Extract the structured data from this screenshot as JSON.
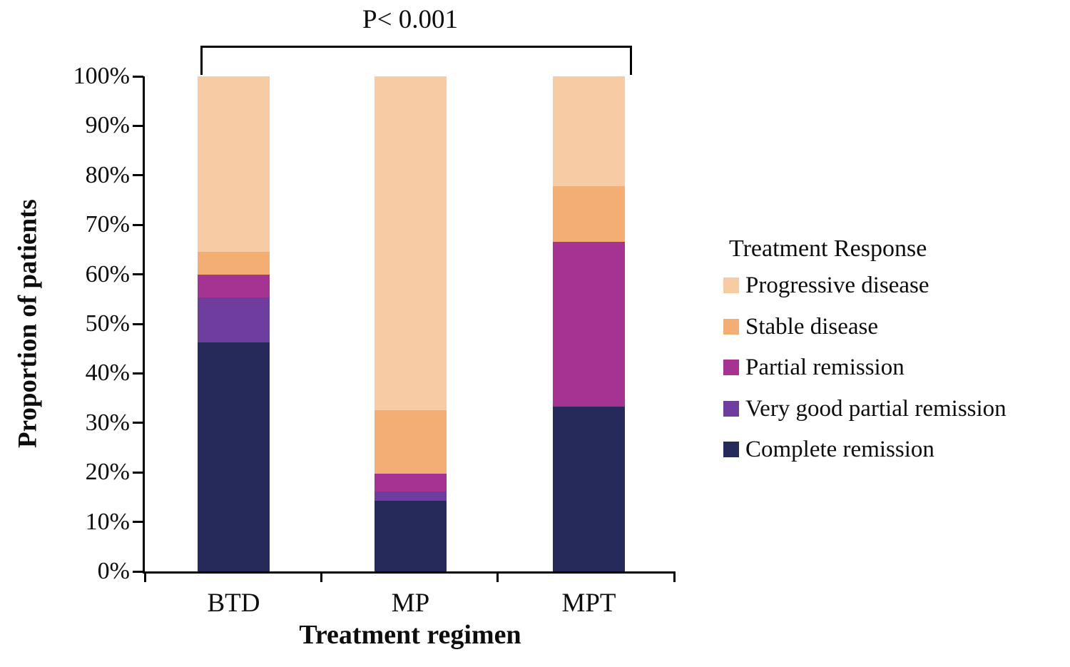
{
  "chart_data": {
    "type": "bar",
    "stacked": true,
    "title": "",
    "xlabel": "Treatment regimen",
    "ylabel": "Proportion of patients",
    "categories": [
      "BTD",
      "MP",
      "MPT"
    ],
    "series": [
      {
        "name": "Complete remission",
        "color": "#252a5b",
        "values": [
          46.2,
          14.3,
          33.3
        ]
      },
      {
        "name": "Very good partial remission",
        "color": "#6e3d9e",
        "values": [
          9.2,
          1.8,
          0.0
        ]
      },
      {
        "name": "Partial remission",
        "color": "#a43391",
        "values": [
          4.6,
          3.6,
          33.3
        ]
      },
      {
        "name": "Stable disease",
        "color": "#f3ae74",
        "values": [
          4.6,
          12.9,
          11.2
        ]
      },
      {
        "name": "Progressive disease",
        "color": "#f7cba3",
        "values": [
          35.4,
          67.4,
          22.2
        ]
      }
    ],
    "ylim": [
      0,
      100
    ],
    "y_ticks": [
      "0%",
      "10%",
      "20%",
      "30%",
      "40%",
      "50%",
      "60%",
      "70%",
      "80%",
      "90%",
      "100%"
    ],
    "grid": false,
    "annotation": {
      "text": "P< 0.001",
      "spans": [
        "BTD",
        "MPT"
      ]
    },
    "legend": {
      "title": "Treatment Response",
      "position": "right",
      "items_top_to_bottom": [
        "Progressive disease",
        "Stable disease",
        "Partial remission",
        "Very good partial remission",
        "Complete remission"
      ]
    }
  }
}
